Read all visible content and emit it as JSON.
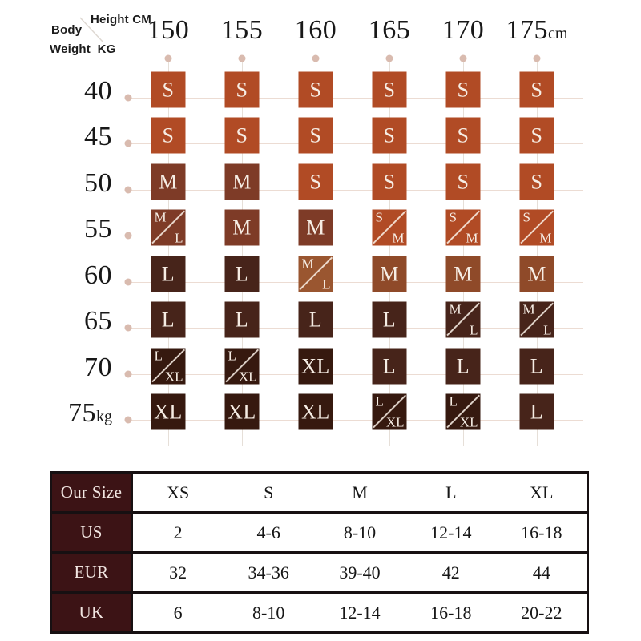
{
  "corner": {
    "height_label": "Height CM",
    "body_label": "Body",
    "weight_label": "Weight",
    "unit_label": "KG"
  },
  "size_matrix": {
    "columns": [
      {
        "value": "150",
        "suffix": ""
      },
      {
        "value": "155",
        "suffix": ""
      },
      {
        "value": "160",
        "suffix": ""
      },
      {
        "value": "165",
        "suffix": ""
      },
      {
        "value": "170",
        "suffix": ""
      },
      {
        "value": "175",
        "suffix": "cm"
      }
    ],
    "rows": [
      {
        "value": "40",
        "suffix": ""
      },
      {
        "value": "45",
        "suffix": ""
      },
      {
        "value": "50",
        "suffix": ""
      },
      {
        "value": "55",
        "suffix": ""
      },
      {
        "value": "60",
        "suffix": ""
      },
      {
        "value": "65",
        "suffix": ""
      },
      {
        "value": "70",
        "suffix": ""
      },
      {
        "value": "75",
        "suffix": "kg"
      }
    ],
    "palette": {
      "s": "#B14B25",
      "m": "#7E3B27",
      "m_mid": "#8F4A29",
      "ml_light": "#9A5630",
      "l": "#47241A",
      "xl": "#36190F"
    },
    "cells": [
      [
        {
          "label": "S",
          "color": "s"
        },
        {
          "label": "S",
          "color": "s"
        },
        {
          "label": "S",
          "color": "s"
        },
        {
          "label": "S",
          "color": "s"
        },
        {
          "label": "S",
          "color": "s"
        },
        {
          "label": "S",
          "color": "s"
        }
      ],
      [
        {
          "label": "S",
          "color": "s"
        },
        {
          "label": "S",
          "color": "s"
        },
        {
          "label": "S",
          "color": "s"
        },
        {
          "label": "S",
          "color": "s"
        },
        {
          "label": "S",
          "color": "s"
        },
        {
          "label": "S",
          "color": "s"
        }
      ],
      [
        {
          "label": "M",
          "color": "m"
        },
        {
          "label": "M",
          "color": "m"
        },
        {
          "label": "S",
          "color": "s"
        },
        {
          "label": "S",
          "color": "s"
        },
        {
          "label": "S",
          "color": "s"
        },
        {
          "label": "S",
          "color": "s"
        }
      ],
      [
        {
          "label": "M/L",
          "top": "M",
          "bottom": "L",
          "color": "m"
        },
        {
          "label": "M",
          "color": "m"
        },
        {
          "label": "M",
          "color": "m"
        },
        {
          "label": "S/M",
          "top": "S",
          "bottom": "M",
          "color": "s"
        },
        {
          "label": "S/M",
          "top": "S",
          "bottom": "M",
          "color": "s"
        },
        {
          "label": "S/M",
          "top": "S",
          "bottom": "M",
          "color": "s"
        }
      ],
      [
        {
          "label": "L",
          "color": "l"
        },
        {
          "label": "L",
          "color": "l"
        },
        {
          "label": "M/L",
          "top": "M",
          "bottom": "L",
          "color": "ml_light"
        },
        {
          "label": "M",
          "color": "m_mid"
        },
        {
          "label": "M",
          "color": "m_mid"
        },
        {
          "label": "M",
          "color": "m_mid"
        }
      ],
      [
        {
          "label": "L",
          "color": "l"
        },
        {
          "label": "L",
          "color": "l"
        },
        {
          "label": "L",
          "color": "l"
        },
        {
          "label": "L",
          "color": "l"
        },
        {
          "label": "M/L",
          "top": "M",
          "bottom": "L",
          "color": "l"
        },
        {
          "label": "M/L",
          "top": "M",
          "bottom": "L",
          "color": "l"
        }
      ],
      [
        {
          "label": "L/XL",
          "top": "L",
          "bottom": "XL",
          "color": "xl"
        },
        {
          "label": "L/XL",
          "top": "L",
          "bottom": "XL",
          "color": "xl"
        },
        {
          "label": "XL",
          "color": "xl"
        },
        {
          "label": "L",
          "color": "l"
        },
        {
          "label": "L",
          "color": "l"
        },
        {
          "label": "L",
          "color": "l"
        }
      ],
      [
        {
          "label": "XL",
          "color": "xl"
        },
        {
          "label": "XL",
          "color": "xl"
        },
        {
          "label": "XL",
          "color": "xl"
        },
        {
          "label": "L/XL",
          "top": "L",
          "bottom": "XL",
          "color": "xl"
        },
        {
          "label": "L/XL",
          "top": "L",
          "bottom": "XL",
          "color": "xl"
        },
        {
          "label": "L",
          "color": "l"
        }
      ]
    ]
  },
  "conversion_table": {
    "header_bg": "#3C1315",
    "border_color": "#171012",
    "rows": [
      {
        "header": "Our Size",
        "values": [
          "XS",
          "S",
          "M",
          "L",
          "XL"
        ]
      },
      {
        "header": "US",
        "values": [
          "2",
          "4-6",
          "8-10",
          "12-14",
          "16-18"
        ]
      },
      {
        "header": "EUR",
        "values": [
          "32",
          "34-36",
          "39-40",
          "42",
          "44"
        ]
      },
      {
        "header": "UK",
        "values": [
          "6",
          "8-10",
          "12-14",
          "16-18",
          "20-22"
        ]
      }
    ]
  },
  "chart_data": [
    {
      "type": "heatmap",
      "title": "Size by height and weight",
      "xlabel": "Height CM",
      "ylabel": "Body Weight KG",
      "x": [
        150,
        155,
        160,
        165,
        170,
        175
      ],
      "y": [
        40,
        45,
        50,
        55,
        60,
        65,
        70,
        75
      ],
      "values": [
        [
          "S",
          "S",
          "S",
          "S",
          "S",
          "S"
        ],
        [
          "S",
          "S",
          "S",
          "S",
          "S",
          "S"
        ],
        [
          "M",
          "M",
          "S",
          "S",
          "S",
          "S"
        ],
        [
          "M/L",
          "M",
          "M",
          "S/M",
          "S/M",
          "S/M"
        ],
        [
          "L",
          "L",
          "M/L",
          "M",
          "M",
          "M"
        ],
        [
          "L",
          "L",
          "L",
          "L",
          "M/L",
          "M/L"
        ],
        [
          "L/XL",
          "L/XL",
          "XL",
          "L",
          "L",
          "L"
        ],
        [
          "XL",
          "XL",
          "XL",
          "L/XL",
          "L/XL",
          "L"
        ]
      ],
      "legend_position": "none",
      "grid": true
    },
    {
      "type": "table",
      "title": "Size conversion",
      "columns": [
        "Our Size",
        "XS",
        "S",
        "M",
        "L",
        "XL"
      ],
      "rows": [
        [
          "US",
          "2",
          "4-6",
          "8-10",
          "12-14",
          "16-18"
        ],
        [
          "EUR",
          "32",
          "34-36",
          "39-40",
          "42",
          "44"
        ],
        [
          "UK",
          "6",
          "8-10",
          "12-14",
          "16-18",
          "20-22"
        ]
      ]
    }
  ]
}
